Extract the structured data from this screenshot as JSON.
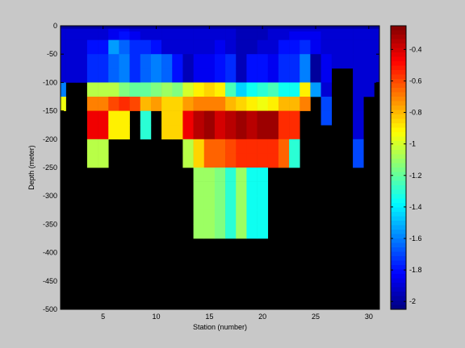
{
  "chart_data": {
    "type": "heatmap",
    "xlabel": "Station (number)",
    "ylabel": "Depth (meter)",
    "xlim": [
      1,
      31
    ],
    "ylim": [
      -500,
      0
    ],
    "xticks": [
      5,
      10,
      15,
      20,
      25,
      30
    ],
    "yticks": [
      0,
      -50,
      -100,
      -150,
      -200,
      -250,
      -300,
      -350,
      -400,
      -450,
      -500
    ],
    "xtick_labels": [
      "5",
      "10",
      "15",
      "20",
      "25",
      "30"
    ],
    "ytick_labels": [
      "0",
      "-50",
      "-100",
      "-150",
      "-200",
      "-250",
      "-300",
      "-350",
      "-400",
      "-450",
      "-500"
    ],
    "colormap": "jet",
    "clim": [
      -2.05,
      -0.25
    ],
    "colorbar_ticks": [
      -0.4,
      -0.6,
      -0.8,
      -1,
      -1.2,
      -1.4,
      -1.6,
      -1.8,
      -2
    ],
    "colorbar_tick_labels": [
      "-0.4",
      "-0.6",
      "-0.8",
      "-1",
      "-1.2",
      "-1.4",
      "-1.6",
      "-1.8",
      "-2"
    ],
    "background_color": "#000000",
    "depth_bin_edges": [
      -5,
      -10,
      -25,
      -50,
      -75,
      -100,
      -125,
      -150,
      -175,
      -200,
      -225,
      -250,
      -275,
      -300,
      -325,
      -350,
      -375,
      -400
    ],
    "stations": [
      {
        "station": 1,
        "values": [
          -2.0,
          -1.9,
          -1.9,
          -1.9,
          -1.9,
          -1.9,
          -1.6,
          -0.95
        ]
      },
      {
        "station": 2,
        "values": [
          -2.0,
          -1.9,
          -1.9,
          -1.9,
          -1.9,
          -1.9
        ]
      },
      {
        "station": 3,
        "values": [
          -2.0,
          -1.9,
          -1.9,
          -1.9,
          -1.9,
          -1.9
        ]
      },
      {
        "station": 4,
        "values": [
          -2.0,
          -1.9,
          -1.9,
          -1.8,
          -1.75,
          -1.75,
          -1.05,
          -0.7,
          -0.45,
          -0.45,
          -1.05,
          -1.05
        ]
      },
      {
        "station": 5,
        "values": [
          -2.0,
          -1.9,
          -1.9,
          -1.8,
          -1.75,
          -1.75,
          -1.05,
          -0.7,
          -0.45,
          -0.45,
          -1.05,
          -1.05
        ]
      },
      {
        "station": 6,
        "values": [
          -2.0,
          -1.85,
          -1.85,
          -1.55,
          -1.65,
          -1.65,
          -1.05,
          -0.6,
          -0.9,
          -0.9
        ]
      },
      {
        "station": 7,
        "values": [
          -2.0,
          -1.85,
          -1.8,
          -1.65,
          -1.6,
          -1.6,
          -1.15,
          -0.55,
          -0.9,
          -0.9
        ]
      },
      {
        "station": 8,
        "values": [
          -2.0,
          -1.9,
          -1.85,
          -1.75,
          -1.75,
          -1.75,
          -1.2,
          -0.6
        ]
      },
      {
        "station": 9,
        "values": [
          -2.0,
          -1.9,
          -1.9,
          -1.75,
          -1.65,
          -1.65,
          -1.2,
          -0.8,
          -1.3,
          -1.3
        ]
      },
      {
        "station": 10,
        "values": [
          -2.0,
          -1.9,
          -1.9,
          -1.8,
          -1.6,
          -1.6,
          -1.15,
          -0.75
        ]
      },
      {
        "station": 11,
        "values": [
          -2.0,
          -1.9,
          -1.9,
          -1.9,
          -1.65,
          -1.65,
          -1.1,
          -0.85,
          -0.85,
          -0.85
        ]
      },
      {
        "station": 12,
        "values": [
          -2.0,
          -1.9,
          -1.9,
          -1.9,
          -1.8,
          -1.8,
          -1.15,
          -0.85,
          -0.85,
          -0.85
        ]
      },
      {
        "station": 13,
        "values": [
          -2.0,
          -1.9,
          -1.9,
          -1.9,
          -1.95,
          -1.95,
          -1.0,
          -0.75,
          -0.45,
          -0.45,
          -1.05,
          -1.05
        ]
      },
      {
        "station": 14,
        "values": [
          -2.0,
          -1.9,
          -1.9,
          -1.9,
          -1.85,
          -1.85,
          -0.9,
          -0.7,
          -0.35,
          -0.35,
          -0.85,
          -0.85,
          -1.1,
          -1.1,
          -1.1,
          -1.1,
          -1.1
        ]
      },
      {
        "station": 15,
        "values": [
          -2.0,
          -1.9,
          -1.9,
          -1.9,
          -1.85,
          -1.85,
          -0.85,
          -0.7,
          -0.3,
          -0.3,
          -0.65,
          -0.65,
          -1.1,
          -1.1,
          -1.1,
          -1.1,
          -1.1
        ]
      },
      {
        "station": 16,
        "values": [
          -2.0,
          -1.9,
          -1.9,
          -1.85,
          -1.8,
          -1.8,
          -0.9,
          -0.7,
          -0.4,
          -0.4,
          -0.65,
          -0.65,
          -1.15,
          -1.15,
          -1.15,
          -1.15,
          -1.15
        ]
      },
      {
        "station": 17,
        "values": [
          -2.0,
          -1.9,
          -1.9,
          -1.9,
          -1.75,
          -1.75,
          -1.25,
          -0.8,
          -0.35,
          -0.35,
          -0.6,
          -0.6,
          -1.3,
          -1.3,
          -1.3,
          -1.3,
          -1.3
        ]
      },
      {
        "station": 18,
        "values": [
          -2.0,
          -1.95,
          -1.95,
          -1.95,
          -1.95,
          -1.95,
          -1.45,
          -0.85,
          -0.3,
          -0.3,
          -0.55,
          -0.55,
          -1.1,
          -1.1,
          -1.1,
          -1.1,
          -1.1
        ]
      },
      {
        "station": 19,
        "values": [
          -2.0,
          -1.95,
          -1.95,
          -1.95,
          -1.8,
          -1.8,
          -1.35,
          -0.9,
          -0.35,
          -0.35,
          -0.55,
          -0.55,
          -1.35,
          -1.35,
          -1.35,
          -1.35,
          -1.35
        ]
      },
      {
        "station": 20,
        "values": [
          -2.0,
          -1.95,
          -1.95,
          -1.9,
          -1.8,
          -1.8,
          -1.3,
          -0.95,
          -0.3,
          -0.3,
          -0.55,
          -0.55,
          -1.35,
          -1.35,
          -1.35,
          -1.35,
          -1.35
        ]
      },
      {
        "station": 21,
        "values": [
          -2.0,
          -1.9,
          -1.9,
          -1.9,
          -1.85,
          -1.85,
          -1.25,
          -0.9,
          -0.3,
          -0.3,
          -0.55,
          -0.55
        ]
      },
      {
        "station": 22,
        "values": [
          -2.0,
          -1.9,
          -1.9,
          -1.8,
          -1.75,
          -1.75,
          -1.35,
          -0.8,
          -0.55,
          -0.55,
          -0.65,
          -0.65
        ]
      },
      {
        "station": 23,
        "values": [
          -2.0,
          -1.9,
          -1.85,
          -1.8,
          -1.75,
          -1.75,
          -1.35,
          -0.8,
          -0.55,
          -0.55,
          -1.3,
          -1.3
        ]
      },
      {
        "station": 24,
        "values": [
          -2.0,
          -1.9,
          -1.85,
          -1.75,
          -1.6,
          -1.6,
          -0.9,
          -0.7
        ]
      },
      {
        "station": 25,
        "values": [
          -2.0,
          -1.9,
          -1.85,
          -1.85,
          -2.0,
          -2.0,
          -1.55
        ]
      },
      {
        "station": 26,
        "values": [
          -2.0,
          -1.9,
          -1.9,
          -1.9,
          -1.85,
          -1.85,
          -1.9,
          -1.7,
          -1.7
        ]
      },
      {
        "station": 27,
        "values": [
          -2.0,
          -1.9,
          -1.9,
          -1.9,
          -1.9
        ]
      },
      {
        "station": 28,
        "values": [
          -2.0,
          -1.9,
          -1.9,
          -1.9,
          -1.9
        ]
      },
      {
        "station": 29,
        "values": [
          -2.0,
          -1.9,
          -1.9,
          -1.9,
          -1.9,
          -1.9,
          -1.9,
          -1.9,
          -1.9,
          -1.9,
          -1.7,
          -1.7
        ]
      },
      {
        "station": 30,
        "values": [
          -2.0,
          -1.9,
          -1.9,
          -1.9,
          -1.9,
          -1.9,
          -1.9
        ]
      },
      {
        "station": 31,
        "values": [
          -2.0,
          -1.9,
          -1.9,
          -1.9,
          -1.9,
          -1.9
        ]
      }
    ]
  }
}
